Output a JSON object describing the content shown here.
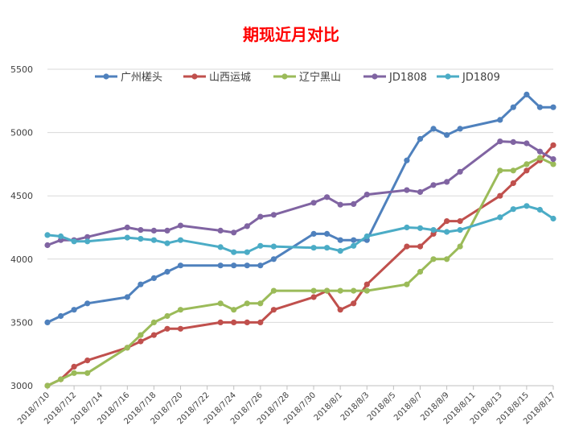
{
  "chart_data": {
    "type": "line",
    "title": "期现近月对比",
    "xlabel": "",
    "ylabel": "",
    "ylim": [
      3000,
      5500
    ],
    "yticks": [
      3000,
      3500,
      4000,
      4500,
      5000,
      5500
    ],
    "xlim": [
      "2018-07-10",
      "2018-08-17"
    ],
    "xticks": [
      {
        "date": "2018-07-10",
        "label": "2018/7/10"
      },
      {
        "date": "2018-07-12",
        "label": "2018/7/12"
      },
      {
        "date": "2018-07-14",
        "label": "2018/7/14"
      },
      {
        "date": "2018-07-16",
        "label": "2018/7/16"
      },
      {
        "date": "2018-07-18",
        "label": "2018/7/18"
      },
      {
        "date": "2018-07-20",
        "label": "2018/7/20"
      },
      {
        "date": "2018-07-22",
        "label": "2018/7/22"
      },
      {
        "date": "2018-07-24",
        "label": "2018/7/24"
      },
      {
        "date": "2018-07-26",
        "label": "2018/7/26"
      },
      {
        "date": "2018-07-28",
        "label": "2018/7/28"
      },
      {
        "date": "2018-07-30",
        "label": "2018/7/30"
      },
      {
        "date": "2018-08-01",
        "label": "2018/8/1"
      },
      {
        "date": "2018-08-03",
        "label": "2018/8/3"
      },
      {
        "date": "2018-08-05",
        "label": "2018/8/5"
      },
      {
        "date": "2018-08-07",
        "label": "2018/8/7"
      },
      {
        "date": "2018-08-09",
        "label": "2018/8/9"
      },
      {
        "date": "2018-08-11",
        "label": "2018/8/11"
      },
      {
        "date": "2018-08-13",
        "label": "2018/8/13"
      },
      {
        "date": "2018-08-15",
        "label": "2018/8/15"
      },
      {
        "date": "2018-08-17",
        "label": "2018/8/17"
      }
    ],
    "grid": "horizontal",
    "legend_position": "top",
    "series": [
      {
        "name": "广州槎头",
        "color": "#4f81bd",
        "points": [
          [
            "2018-07-10",
            3500
          ],
          [
            "2018-07-11",
            3550
          ],
          [
            "2018-07-12",
            3600
          ],
          [
            "2018-07-13",
            3650
          ],
          [
            "2018-07-16",
            3700
          ],
          [
            "2018-07-17",
            3800
          ],
          [
            "2018-07-18",
            3850
          ],
          [
            "2018-07-19",
            3900
          ],
          [
            "2018-07-20",
            3950
          ],
          [
            "2018-07-23",
            3950
          ],
          [
            "2018-07-24",
            3950
          ],
          [
            "2018-07-25",
            3950
          ],
          [
            "2018-07-26",
            3950
          ],
          [
            "2018-07-27",
            4000
          ],
          [
            "2018-07-30",
            4200
          ],
          [
            "2018-07-31",
            4200
          ],
          [
            "2018-08-01",
            4150
          ],
          [
            "2018-08-02",
            4150
          ],
          [
            "2018-08-03",
            4150
          ],
          [
            "2018-08-06",
            4780
          ],
          [
            "2018-08-07",
            4950
          ],
          [
            "2018-08-08",
            5030
          ],
          [
            "2018-08-09",
            4980
          ],
          [
            "2018-08-10",
            5030
          ],
          [
            "2018-08-13",
            5100
          ],
          [
            "2018-08-14",
            5200
          ],
          [
            "2018-08-15",
            5300
          ],
          [
            "2018-08-16",
            5200
          ],
          [
            "2018-08-17",
            5200
          ]
        ]
      },
      {
        "name": "山西运城",
        "color": "#c0504d",
        "points": [
          [
            "2018-07-10",
            3000
          ],
          [
            "2018-07-11",
            3050
          ],
          [
            "2018-07-12",
            3150
          ],
          [
            "2018-07-13",
            3200
          ],
          [
            "2018-07-16",
            3300
          ],
          [
            "2018-07-17",
            3350
          ],
          [
            "2018-07-18",
            3400
          ],
          [
            "2018-07-19",
            3450
          ],
          [
            "2018-07-20",
            3450
          ],
          [
            "2018-07-23",
            3500
          ],
          [
            "2018-07-24",
            3500
          ],
          [
            "2018-07-25",
            3500
          ],
          [
            "2018-07-26",
            3500
          ],
          [
            "2018-07-27",
            3600
          ],
          [
            "2018-07-30",
            3700
          ],
          [
            "2018-07-31",
            3750
          ],
          [
            "2018-08-01",
            3600
          ],
          [
            "2018-08-02",
            3650
          ],
          [
            "2018-08-03",
            3800
          ],
          [
            "2018-08-06",
            4100
          ],
          [
            "2018-08-07",
            4100
          ],
          [
            "2018-08-08",
            4200
          ],
          [
            "2018-08-09",
            4300
          ],
          [
            "2018-08-10",
            4300
          ],
          [
            "2018-08-13",
            4500
          ],
          [
            "2018-08-14",
            4600
          ],
          [
            "2018-08-15",
            4700
          ],
          [
            "2018-08-16",
            4780
          ],
          [
            "2018-08-17",
            4900
          ]
        ]
      },
      {
        "name": "辽宁黑山",
        "color": "#9bbb59",
        "points": [
          [
            "2018-07-10",
            3000
          ],
          [
            "2018-07-11",
            3050
          ],
          [
            "2018-07-12",
            3100
          ],
          [
            "2018-07-13",
            3100
          ],
          [
            "2018-07-16",
            3300
          ],
          [
            "2018-07-17",
            3400
          ],
          [
            "2018-07-18",
            3500
          ],
          [
            "2018-07-19",
            3550
          ],
          [
            "2018-07-20",
            3600
          ],
          [
            "2018-07-23",
            3650
          ],
          [
            "2018-07-24",
            3600
          ],
          [
            "2018-07-25",
            3650
          ],
          [
            "2018-07-26",
            3650
          ],
          [
            "2018-07-27",
            3750
          ],
          [
            "2018-07-30",
            3750
          ],
          [
            "2018-07-31",
            3750
          ],
          [
            "2018-08-01",
            3750
          ],
          [
            "2018-08-02",
            3750
          ],
          [
            "2018-08-03",
            3750
          ],
          [
            "2018-08-06",
            3800
          ],
          [
            "2018-08-07",
            3900
          ],
          [
            "2018-08-08",
            4000
          ],
          [
            "2018-08-09",
            4000
          ],
          [
            "2018-08-10",
            4100
          ],
          [
            "2018-08-13",
            4700
          ],
          [
            "2018-08-14",
            4700
          ],
          [
            "2018-08-15",
            4750
          ],
          [
            "2018-08-16",
            4800
          ],
          [
            "2018-08-17",
            4750
          ]
        ]
      },
      {
        "name": "JD1808",
        "color": "#8064a2",
        "points": [
          [
            "2018-07-10",
            4110
          ],
          [
            "2018-07-11",
            4150
          ],
          [
            "2018-07-12",
            4150
          ],
          [
            "2018-07-13",
            4175
          ],
          [
            "2018-07-16",
            4250
          ],
          [
            "2018-07-17",
            4230
          ],
          [
            "2018-07-18",
            4225
          ],
          [
            "2018-07-19",
            4225
          ],
          [
            "2018-07-20",
            4265
          ],
          [
            "2018-07-23",
            4225
          ],
          [
            "2018-07-24",
            4210
          ],
          [
            "2018-07-25",
            4260
          ],
          [
            "2018-07-26",
            4335
          ],
          [
            "2018-07-27",
            4350
          ],
          [
            "2018-07-30",
            4445
          ],
          [
            "2018-07-31",
            4490
          ],
          [
            "2018-08-01",
            4430
          ],
          [
            "2018-08-02",
            4435
          ],
          [
            "2018-08-03",
            4510
          ],
          [
            "2018-08-06",
            4545
          ],
          [
            "2018-08-07",
            4530
          ],
          [
            "2018-08-08",
            4585
          ],
          [
            "2018-08-09",
            4610
          ],
          [
            "2018-08-10",
            4690
          ],
          [
            "2018-08-13",
            4930
          ],
          [
            "2018-08-14",
            4925
          ],
          [
            "2018-08-15",
            4915
          ],
          [
            "2018-08-16",
            4850
          ],
          [
            "2018-08-17",
            4790
          ]
        ]
      },
      {
        "name": "JD1809",
        "color": "#4bacc6",
        "points": [
          [
            "2018-07-10",
            4190
          ],
          [
            "2018-07-11",
            4180
          ],
          [
            "2018-07-12",
            4140
          ],
          [
            "2018-07-13",
            4140
          ],
          [
            "2018-07-16",
            4170
          ],
          [
            "2018-07-17",
            4160
          ],
          [
            "2018-07-18",
            4150
          ],
          [
            "2018-07-19",
            4125
          ],
          [
            "2018-07-20",
            4150
          ],
          [
            "2018-07-23",
            4095
          ],
          [
            "2018-07-24",
            4055
          ],
          [
            "2018-07-25",
            4055
          ],
          [
            "2018-07-26",
            4105
          ],
          [
            "2018-07-27",
            4100
          ],
          [
            "2018-07-30",
            4090
          ],
          [
            "2018-07-31",
            4090
          ],
          [
            "2018-08-01",
            4065
          ],
          [
            "2018-08-02",
            4105
          ],
          [
            "2018-08-03",
            4180
          ],
          [
            "2018-08-06",
            4250
          ],
          [
            "2018-08-07",
            4245
          ],
          [
            "2018-08-08",
            4230
          ],
          [
            "2018-08-09",
            4215
          ],
          [
            "2018-08-10",
            4230
          ],
          [
            "2018-08-13",
            4330
          ],
          [
            "2018-08-14",
            4395
          ],
          [
            "2018-08-15",
            4420
          ],
          [
            "2018-08-16",
            4390
          ],
          [
            "2018-08-17",
            4320
          ]
        ]
      }
    ]
  }
}
